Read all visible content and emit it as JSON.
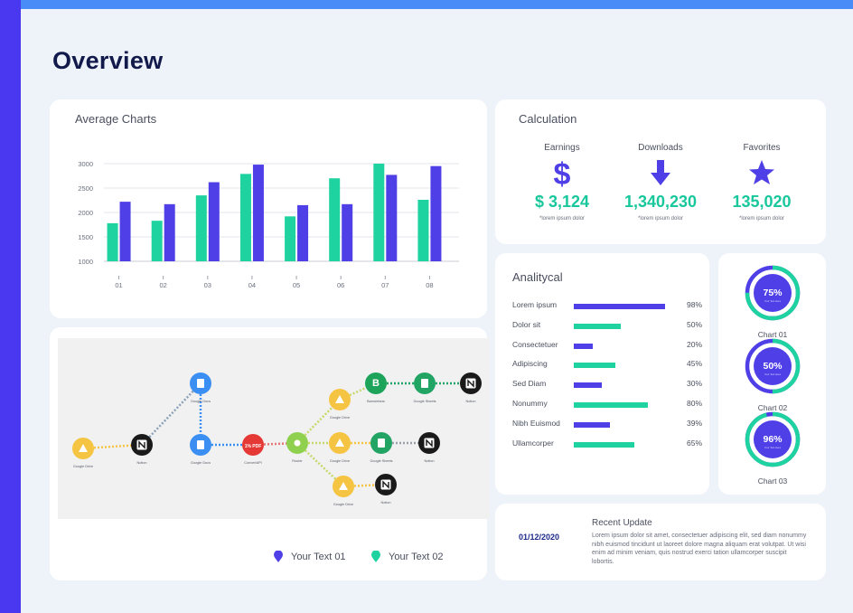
{
  "page_title": "Overview",
  "colors": {
    "green": "#1ed3a0",
    "purple": "#4f3fe6",
    "accent_blue": "#4a8cf7"
  },
  "average_charts": {
    "title": "Average Charts",
    "chart_data": {
      "type": "bar",
      "title": "Average Charts",
      "categories": [
        "01",
        "02",
        "03",
        "04",
        "05",
        "06",
        "07",
        "08"
      ],
      "series": [
        {
          "values": [
            1780,
            1830,
            2350,
            2790,
            1920,
            2700,
            3000,
            2260
          ]
        },
        {
          "values": [
            2220,
            2170,
            2620,
            2980,
            2150,
            2170,
            2770,
            2950
          ]
        }
      ],
      "yticks": [
        "3000",
        "2500",
        "2000",
        "1500",
        "1000"
      ],
      "ylim": [
        1000,
        3000
      ],
      "grid": true
    }
  },
  "calculation": {
    "title": "Calculation",
    "stats": [
      {
        "label": "Earnings",
        "icon": "dollar-icon",
        "value": "$ 3,124",
        "sub": "*lorem ipsum dolor"
      },
      {
        "label": "Downloads",
        "icon": "arrow-down-icon",
        "value": "1,340,230",
        "sub": "*lorem ipsum dolor"
      },
      {
        "label": "Favorites",
        "icon": "star-icon",
        "value": "135,020",
        "sub": "*lorem ipsum dolor"
      }
    ]
  },
  "analitycal": {
    "title": "Analitycal",
    "rows": [
      {
        "label": "Lorem ipsum",
        "value": 98,
        "pct": "98%",
        "color": "purple"
      },
      {
        "label": "Dolor sit",
        "value": 50,
        "pct": "50%",
        "color": "green"
      },
      {
        "label": "Consectetuer",
        "value": 20,
        "pct": "20%",
        "color": "purple"
      },
      {
        "label": "Adipiscing",
        "value": 45,
        "pct": "45%",
        "color": "green"
      },
      {
        "label": "Sed Diam",
        "value": 30,
        "pct": "30%",
        "color": "purple"
      },
      {
        "label": "Nonummy",
        "value": 80,
        "pct": "80%",
        "color": "green"
      },
      {
        "label": "Nibh Euismod",
        "value": 39,
        "pct": "39%",
        "color": "purple"
      },
      {
        "label": "Ullamcorper",
        "value": 65,
        "pct": "65%",
        "color": "green"
      }
    ]
  },
  "donuts": [
    {
      "label": "Chart 01",
      "value": 75,
      "text": "75%",
      "sub": "Your Text Here"
    },
    {
      "label": "Chart 02",
      "value": 50,
      "text": "50%",
      "sub": "Your Text Here"
    },
    {
      "label": "Chart 03",
      "value": 96,
      "text": "96%",
      "sub": "Your Text Here"
    }
  ],
  "workflow": {
    "nodes": [
      {
        "id": "n1",
        "label": "Google Drive",
        "icon": "drive-icon"
      },
      {
        "id": "n2",
        "label": "Notion",
        "icon": "notion-icon"
      },
      {
        "id": "n3",
        "label": "Google Docs",
        "icon": "docs-icon"
      },
      {
        "id": "n4",
        "label": "Google Docs",
        "icon": "docs-icon"
      },
      {
        "id": "n5",
        "label": "ConvertAPI",
        "icon": "pdf-icon",
        "text": "1% PDF"
      },
      {
        "id": "n6",
        "label": "Router",
        "icon": "router-icon"
      },
      {
        "id": "n7",
        "label": "Google Drive",
        "icon": "drive-icon"
      },
      {
        "id": "n8",
        "label": "Bannerbear",
        "icon": "bannerbear-icon",
        "text": "B"
      },
      {
        "id": "n9",
        "label": "Google Sheets",
        "icon": "sheets-icon"
      },
      {
        "id": "n10",
        "label": "Notion",
        "icon": "notion-icon"
      },
      {
        "id": "n11",
        "label": "Google Drive",
        "icon": "drive-icon"
      },
      {
        "id": "n12",
        "label": "Google Sheets",
        "icon": "sheets-icon"
      },
      {
        "id": "n13",
        "label": "Notion",
        "icon": "notion-icon"
      },
      {
        "id": "n14",
        "label": "Google Drive",
        "icon": "drive-icon"
      },
      {
        "id": "n15",
        "label": "Notion",
        "icon": "notion-icon"
      }
    ],
    "legend": [
      "Your Text 01",
      "Your Text 02"
    ]
  },
  "recent_update": {
    "title": "Recent Update",
    "date": "01/12/2020",
    "body": "Lorem ipsum dolor sit amet, consectetuer adipiscing elit, sed diam nonummy nibh euismod tincidunt ut laoreet dolore magna aliquam erat volutpat. Ut wisi enim ad minim veniam, quis nostrud exerci tation ullamcorper suscipit lobortis."
  }
}
